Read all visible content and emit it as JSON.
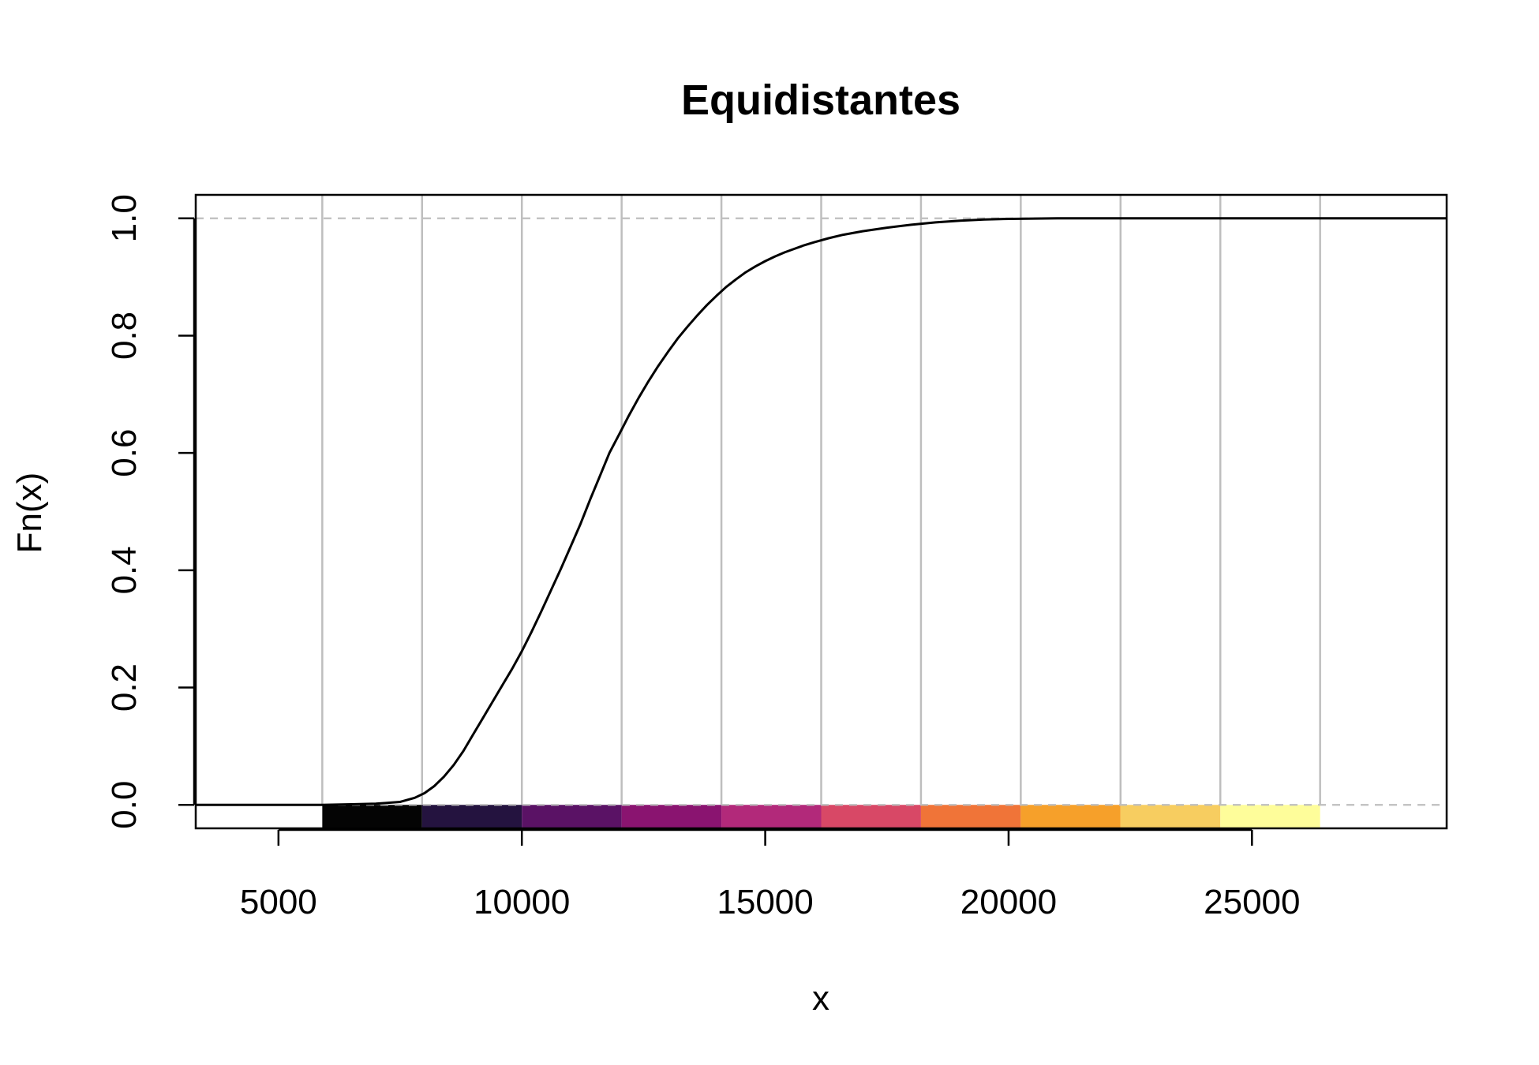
{
  "chart_data": {
    "type": "line",
    "title": "Equidistantes",
    "xlabel": "x",
    "ylabel": "Fn(x)",
    "xlim": [
      3300,
      29000
    ],
    "ylim": [
      -0.04,
      1.04
    ],
    "x_ticks": [
      5000,
      10000,
      15000,
      20000,
      25000
    ],
    "x_tick_labels": [
      "5000",
      "10000",
      "15000",
      "20000",
      "25000"
    ],
    "y_ticks": [
      0.0,
      0.2,
      0.4,
      0.6,
      0.8,
      1.0
    ],
    "y_tick_labels": [
      "0.0",
      "0.2",
      "0.4",
      "0.6",
      "0.8",
      "1.0"
    ],
    "reference_lines_y": [
      0.0,
      1.0
    ],
    "reference_line_color": "#bebebe",
    "breakpoint_line_color": "#bebebe",
    "breakpoints": [
      5900,
      7950,
      10000,
      12050,
      14100,
      16150,
      18200,
      20250,
      22300,
      24350,
      26400
    ],
    "interval_colors": [
      "#000004",
      "#231151",
      "#5f187f",
      "#982d80",
      "#d3436e",
      "#f8765c",
      "#fcb377",
      "#fce9a0",
      "#fcfdbf",
      "#ffff99"
    ],
    "band_colors": [
      "#040404",
      "#24133f",
      "#5a1265",
      "#8a1470",
      "#b2297a",
      "#d84866",
      "#f07438",
      "#f6a02a",
      "#f7cd60",
      "#fefd9a"
    ],
    "series": [
      {
        "color": "#000000",
        "x": [
          3300,
          5900,
          6500,
          7000,
          7500,
          7800,
          8000,
          8200,
          8400,
          8600,
          8800,
          9000,
          9200,
          9400,
          9600,
          9800,
          10000,
          10200,
          10400,
          10600,
          10800,
          11000,
          11200,
          11400,
          11600,
          11800,
          12000,
          12200,
          12400,
          12600,
          12800,
          13000,
          13200,
          13400,
          13600,
          13800,
          14000,
          14200,
          14400,
          14600,
          14800,
          15000,
          15200,
          15400,
          15600,
          15800,
          16000,
          16300,
          16600,
          17000,
          17500,
          18000,
          18500,
          19000,
          19500,
          20000,
          21000,
          22000,
          24000,
          26400,
          29000
        ],
        "y": [
          0.0,
          0.0,
          0.001,
          0.002,
          0.005,
          0.012,
          0.02,
          0.032,
          0.048,
          0.068,
          0.092,
          0.12,
          0.148,
          0.176,
          0.204,
          0.232,
          0.262,
          0.295,
          0.33,
          0.366,
          0.402,
          0.44,
          0.478,
          0.52,
          0.56,
          0.6,
          0.632,
          0.664,
          0.694,
          0.722,
          0.748,
          0.772,
          0.795,
          0.815,
          0.834,
          0.852,
          0.868,
          0.883,
          0.896,
          0.908,
          0.918,
          0.927,
          0.935,
          0.942,
          0.948,
          0.954,
          0.959,
          0.966,
          0.972,
          0.978,
          0.984,
          0.989,
          0.993,
          0.996,
          0.998,
          0.999,
          1.0,
          1.0,
          1.0,
          1.0,
          1.0
        ]
      }
    ],
    "grid": false,
    "legend": "none"
  }
}
